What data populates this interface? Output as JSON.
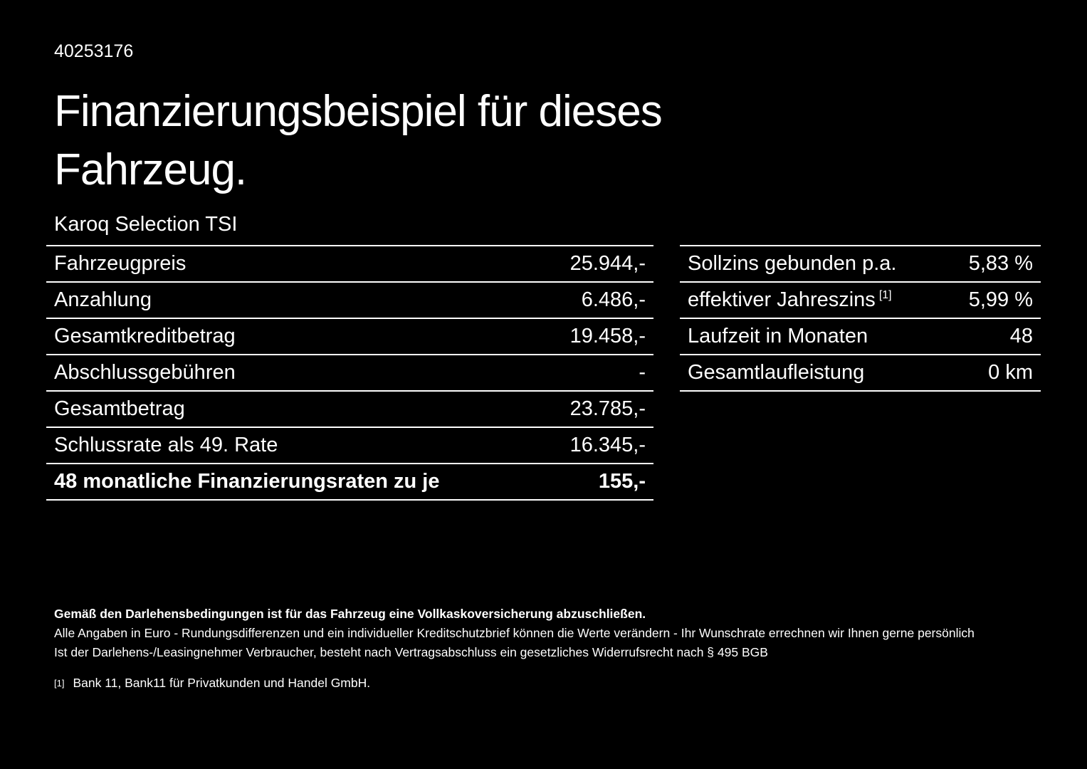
{
  "colors": {
    "background": "#000000",
    "text": "#ffffff"
  },
  "header": {
    "vehicle_id": "40253176",
    "title_line1": "Finanzierungsbeispiel für dieses",
    "title_line2": "Fahrzeug.",
    "model": "Karoq Selection TSI"
  },
  "left_table": {
    "rows": [
      {
        "label": "Fahrzeugpreis",
        "value": "25.944,-"
      },
      {
        "label": "Anzahlung",
        "value": "6.486,-"
      },
      {
        "label": "Gesamtkreditbetrag",
        "value": "19.458,-"
      },
      {
        "label": "Abschlussgebühren",
        "value": "-"
      },
      {
        "label": "Gesamtbetrag",
        "value": "23.785,-"
      },
      {
        "label": "Schlussrate als 49. Rate",
        "value": "16.345,-"
      },
      {
        "label": "48 monatliche Finanzierungsraten zu je",
        "value": "155,-"
      }
    ]
  },
  "right_table": {
    "rows": [
      {
        "label": "Sollzins gebunden p.a.",
        "value": "5,83 %"
      },
      {
        "label": "effektiver Jahreszins",
        "sup": "[1]",
        "value": "5,99 %"
      },
      {
        "label": "Laufzeit in Monaten",
        "value": "48"
      },
      {
        "label": "Gesamtlaufleistung",
        "value": "0 km"
      }
    ]
  },
  "footer": {
    "insurance_note": "Gemäß den Darlehensbedingungen ist für das Fahrzeug eine Vollkaskoversicherung abzuschließen.",
    "note2": "Alle Angaben in Euro - Rundungsdifferenzen und ein individueller Kreditschutzbrief können die Werte verändern - Ihr Wunschrate errechnen wir Ihnen gerne persönlich",
    "note3": "Ist der Darlehens-/Leasingnehmer Verbraucher, besteht nach Vertragsabschluss ein gesetzliches Widerrufsrecht nach § 495 BGB",
    "footnote_marker": "[1]",
    "footnote_text": "Bank 11, Bank11 für Privatkunden und Handel GmbH."
  }
}
